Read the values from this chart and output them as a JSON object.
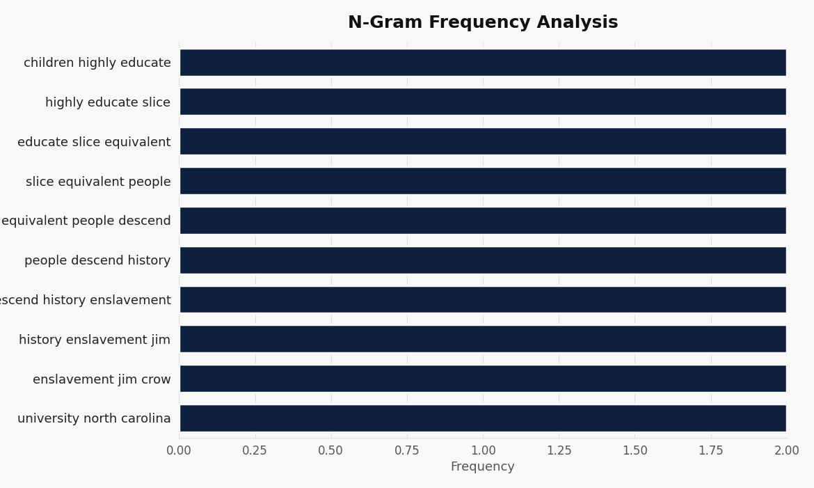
{
  "title": "N-Gram Frequency Analysis",
  "categories": [
    "university north carolina",
    "enslavement jim crow",
    "history enslavement jim",
    "descend history enslavement",
    "people descend history",
    "equivalent people descend",
    "slice equivalent people",
    "educate slice equivalent",
    "highly educate slice",
    "children highly educate"
  ],
  "values": [
    2.0,
    2.0,
    2.0,
    2.0,
    2.0,
    2.0,
    2.0,
    2.0,
    2.0,
    2.0
  ],
  "bar_color": "#0d1f3c",
  "background_color": "#f8f8f8",
  "plot_bg_color": "#f8f8f8",
  "xlabel": "Frequency",
  "xlim": [
    0,
    2.0
  ],
  "xticks": [
    0.0,
    0.25,
    0.5,
    0.75,
    1.0,
    1.25,
    1.5,
    1.75,
    2.0
  ],
  "title_fontsize": 18,
  "label_fontsize": 13,
  "tick_fontsize": 12,
  "bar_height": 0.72,
  "label_color": "#222222",
  "tick_color": "#555555",
  "grid_color": "#dddddd"
}
